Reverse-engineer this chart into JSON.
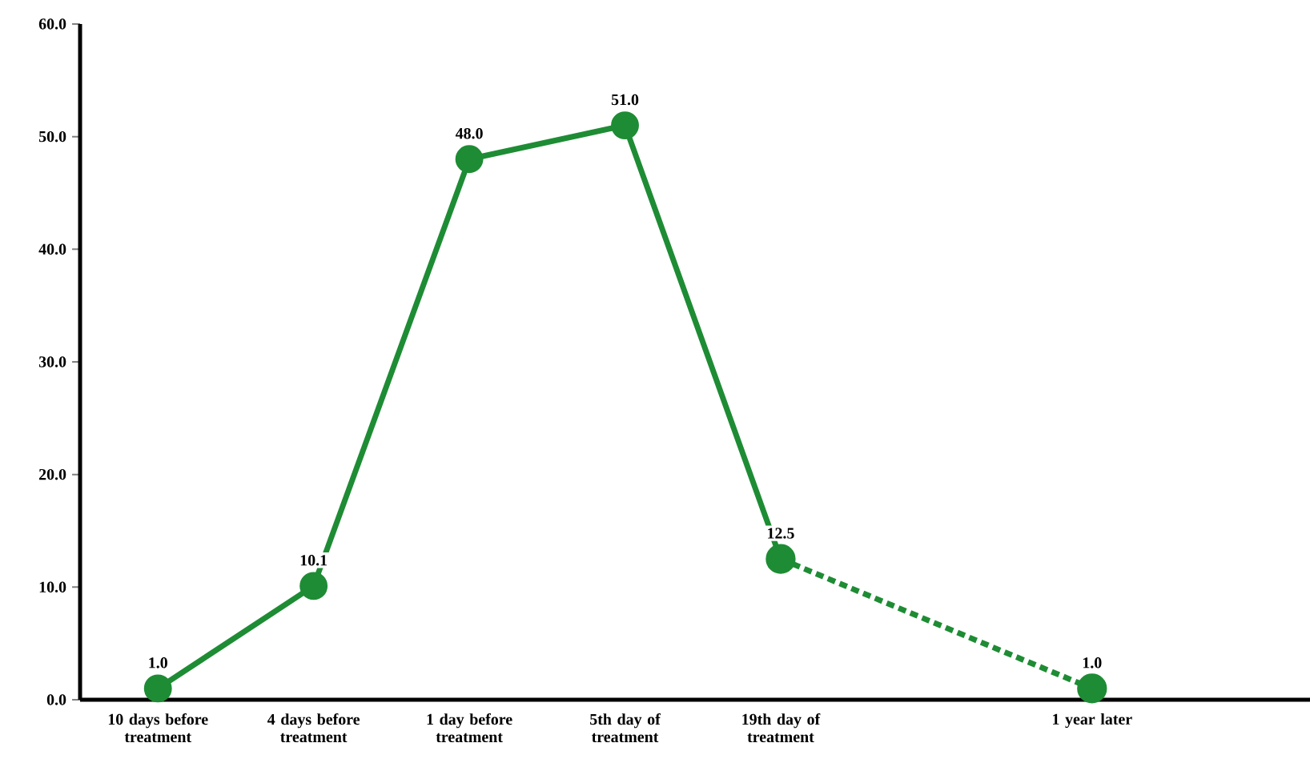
{
  "chart_data": {
    "type": "line",
    "categories": [
      "10 days before treatment",
      "4 days before treatment",
      "1 day before treatment",
      "5th day of treatment",
      "19th day of treatment",
      null,
      "1 year later"
    ],
    "series": [
      {
        "color": "#1e8c34",
        "line_style": "solid",
        "values": [
          1.0,
          10.1,
          48.0,
          51.0,
          12.5,
          null,
          null
        ],
        "value_labels": [
          "1.0",
          "10.1",
          "48.0",
          "51.0",
          "12.5",
          null,
          null
        ]
      },
      {
        "color": "#1e8c34",
        "line_style": "dashed",
        "values": [
          null,
          null,
          null,
          null,
          12.5,
          null,
          1.0
        ],
        "value_labels": [
          null,
          null,
          null,
          null,
          null,
          null,
          "1.0"
        ]
      }
    ],
    "ylim": [
      0,
      60
    ],
    "yticks": [
      {
        "value": 0,
        "label": "0.0"
      },
      {
        "value": 10,
        "label": "10.0"
      },
      {
        "value": 20,
        "label": "20.0"
      },
      {
        "value": 30,
        "label": "30.0"
      },
      {
        "value": 40,
        "label": "40.0"
      },
      {
        "value": 50,
        "label": "50.0"
      },
      {
        "value": 60,
        "label": "60.0"
      }
    ],
    "marker": "circle",
    "grid": false
  }
}
